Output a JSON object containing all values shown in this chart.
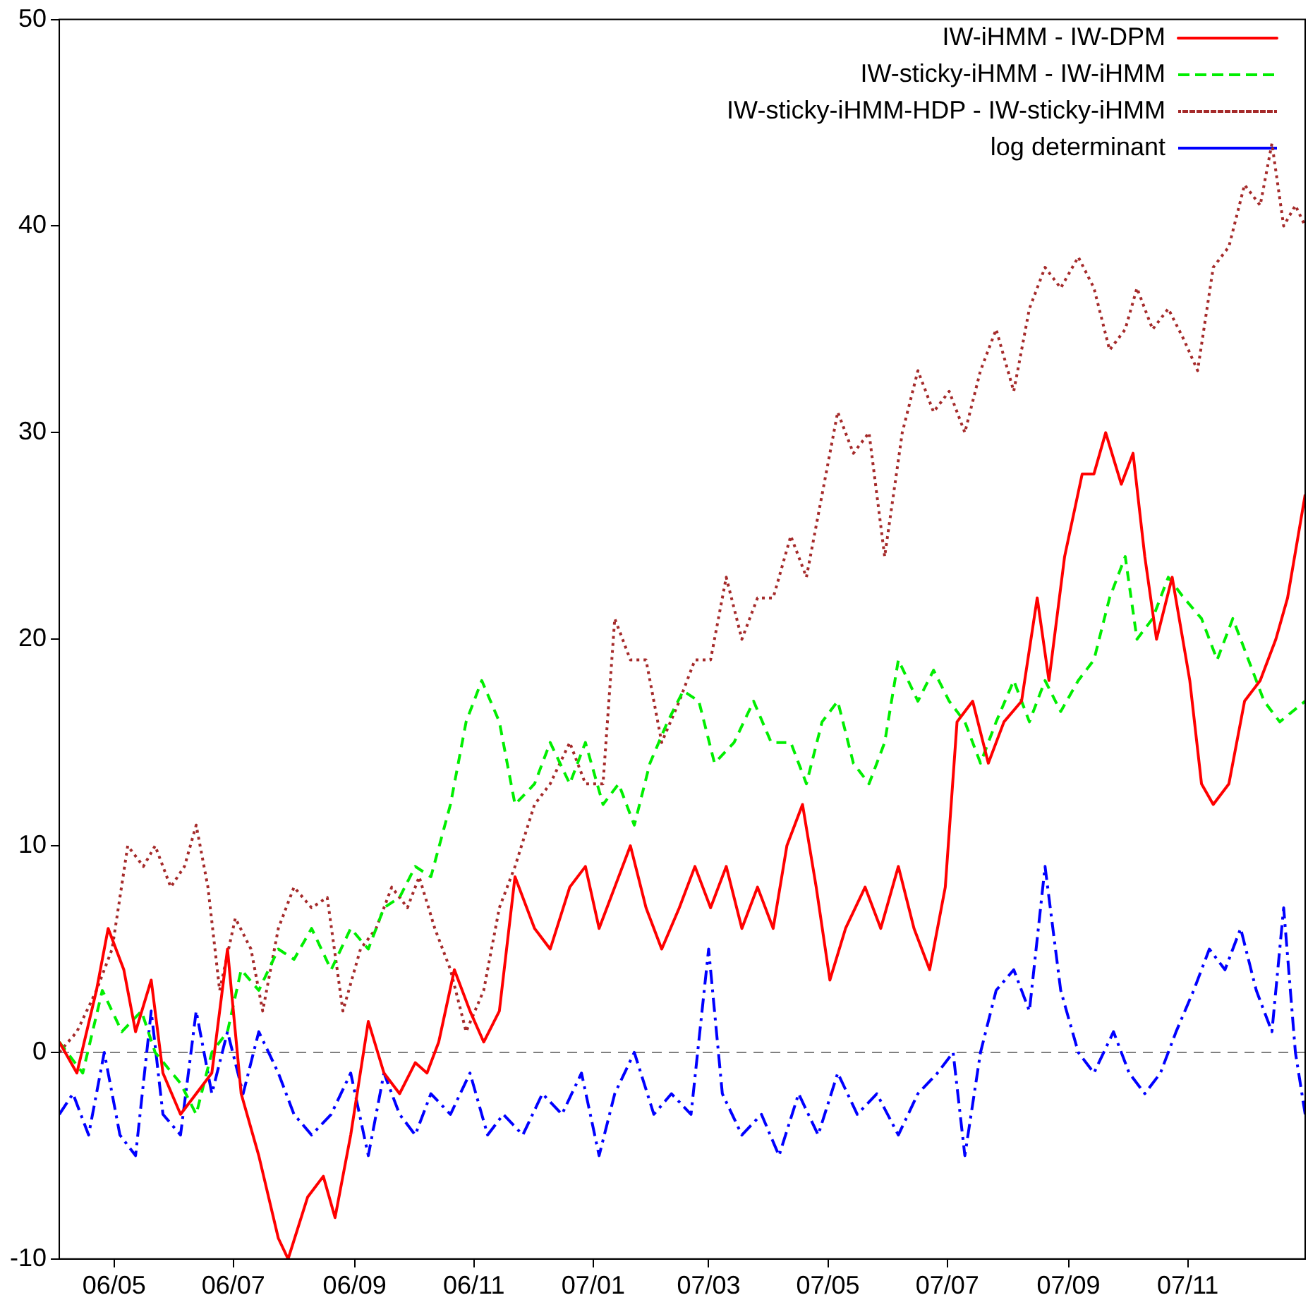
{
  "chart_data": {
    "type": "line",
    "xlim": [
      "2006-04-03",
      "2007-12-31"
    ],
    "ylim": [
      -10,
      50
    ],
    "xticks": [
      {
        "value": "2006-05-01",
        "label": "06/05"
      },
      {
        "value": "2006-07-01",
        "label": "06/07"
      },
      {
        "value": "2006-09-01",
        "label": "06/09"
      },
      {
        "value": "2006-11-01",
        "label": "06/11"
      },
      {
        "value": "2007-01-01",
        "label": "07/01"
      },
      {
        "value": "2007-03-01",
        "label": "07/03"
      },
      {
        "value": "2007-05-01",
        "label": "07/05"
      },
      {
        "value": "2007-07-01",
        "label": "07/07"
      },
      {
        "value": "2007-09-01",
        "label": "07/09"
      },
      {
        "value": "2007-11-01",
        "label": "07/11"
      }
    ],
    "yticks": [
      -10,
      0,
      10,
      20,
      30,
      40,
      50
    ],
    "grid": false,
    "legend": "top right",
    "marker": "none",
    "ref_lines": [
      {
        "axis": "y",
        "value": 0,
        "color": "#808080",
        "line_style": "dashed"
      }
    ],
    "series": [
      {
        "name": "IW-iHMM - IW-DPM",
        "color": "#ff0000",
        "line_style": "solid",
        "x": [
          "2006-04-03",
          "2006-04-12",
          "2006-04-22",
          "2006-04-28",
          "2006-05-06",
          "2006-05-12",
          "2006-05-20",
          "2006-05-26",
          "2006-06-04",
          "2006-06-12",
          "2006-06-20",
          "2006-06-28",
          "2006-07-05",
          "2006-07-14",
          "2006-07-24",
          "2006-07-29",
          "2006-08-08",
          "2006-08-16",
          "2006-08-22",
          "2006-08-30",
          "2006-09-08",
          "2006-09-16",
          "2006-09-24",
          "2006-10-02",
          "2006-10-08",
          "2006-10-14",
          "2006-10-22",
          "2006-10-30",
          "2006-11-06",
          "2006-11-14",
          "2006-11-22",
          "2006-12-02",
          "2006-12-10",
          "2006-12-20",
          "2006-12-28",
          "2007-01-04",
          "2007-01-12",
          "2007-01-20",
          "2007-01-28",
          "2007-02-05",
          "2007-02-14",
          "2007-02-22",
          "2007-03-02",
          "2007-03-10",
          "2007-03-18",
          "2007-03-26",
          "2007-04-03",
          "2007-04-10",
          "2007-04-18",
          "2007-04-25",
          "2007-05-02",
          "2007-05-10",
          "2007-05-20",
          "2007-05-28",
          "2007-06-06",
          "2007-06-14",
          "2007-06-22",
          "2007-06-30",
          "2007-07-06",
          "2007-07-14",
          "2007-07-22",
          "2007-07-30",
          "2007-08-08",
          "2007-08-16",
          "2007-08-22",
          "2007-08-30",
          "2007-09-08",
          "2007-09-14",
          "2007-09-20",
          "2007-09-28",
          "2007-10-04",
          "2007-10-10",
          "2007-10-16",
          "2007-10-24",
          "2007-11-02",
          "2007-11-08",
          "2007-11-14",
          "2007-11-22",
          "2007-11-30",
          "2007-12-08",
          "2007-12-16",
          "2007-12-22",
          "2007-12-31"
        ],
        "values": [
          0.5,
          -1,
          3,
          6,
          4,
          1,
          3.5,
          -1,
          -3,
          -2,
          -1,
          5,
          -2,
          -5,
          -9,
          -10,
          -7,
          -6,
          -8,
          -4,
          1.5,
          -1,
          -2,
          -0.5,
          -1,
          0.5,
          4,
          2,
          0.5,
          2,
          8.5,
          6,
          5,
          8,
          9,
          6,
          8,
          10,
          7,
          5,
          7,
          9,
          7,
          9,
          6,
          8,
          6,
          10,
          12,
          8,
          3.5,
          6,
          8,
          6,
          9,
          6,
          4,
          8,
          16,
          17,
          14,
          16,
          17,
          22,
          18,
          24,
          28,
          28,
          30,
          27.5,
          29,
          24,
          20,
          23,
          18,
          13,
          12,
          13,
          17,
          18,
          20,
          22,
          27
        ]
      },
      {
        "name": "IW-sticky-iHMM - IW-iHMM",
        "color": "#00ee00",
        "line_style": "dashed",
        "x": [
          "2006-04-03",
          "2006-04-15",
          "2006-04-25",
          "2006-05-05",
          "2006-05-15",
          "2006-05-22",
          "2006-06-04",
          "2006-06-12",
          "2006-06-20",
          "2006-06-28",
          "2006-07-05",
          "2006-07-14",
          "2006-07-24",
          "2006-08-01",
          "2006-08-10",
          "2006-08-20",
          "2006-08-30",
          "2006-09-08",
          "2006-09-16",
          "2006-09-24",
          "2006-10-02",
          "2006-10-10",
          "2006-10-20",
          "2006-10-28",
          "2006-11-05",
          "2006-11-14",
          "2006-11-22",
          "2006-12-02",
          "2006-12-10",
          "2006-12-20",
          "2006-12-28",
          "2007-01-06",
          "2007-01-14",
          "2007-01-22",
          "2007-01-30",
          "2007-02-08",
          "2007-02-16",
          "2007-02-24",
          "2007-03-04",
          "2007-03-14",
          "2007-03-24",
          "2007-04-02",
          "2007-04-12",
          "2007-04-20",
          "2007-04-28",
          "2007-05-06",
          "2007-05-14",
          "2007-05-22",
          "2007-05-30",
          "2007-06-06",
          "2007-06-16",
          "2007-06-24",
          "2007-07-02",
          "2007-07-10",
          "2007-07-18",
          "2007-07-26",
          "2007-08-04",
          "2007-08-12",
          "2007-08-20",
          "2007-08-28",
          "2007-09-06",
          "2007-09-14",
          "2007-09-22",
          "2007-09-30",
          "2007-10-06",
          "2007-10-14",
          "2007-10-22",
          "2007-10-30",
          "2007-11-08",
          "2007-11-16",
          "2007-11-24",
          "2007-12-02",
          "2007-12-10",
          "2007-12-18",
          "2007-12-31"
        ],
        "values": [
          0.5,
          -1,
          3,
          1,
          2,
          0,
          -1.5,
          -3,
          0,
          1,
          4,
          3,
          5,
          4.5,
          6,
          4,
          6,
          5,
          7,
          7.5,
          9,
          8.5,
          12,
          16,
          18,
          16,
          12,
          13,
          15,
          13,
          15,
          12,
          13,
          11,
          14,
          16,
          17.5,
          17,
          14,
          15,
          17,
          15,
          15,
          13,
          16,
          17,
          14,
          13,
          15,
          19,
          17,
          18.5,
          17,
          16,
          14,
          16,
          18,
          16,
          18,
          16.5,
          18,
          19,
          22,
          24,
          20,
          21,
          23,
          22,
          21,
          19,
          21,
          19,
          17,
          16,
          17
        ]
      },
      {
        "name": "IW-sticky-iHMM-HDP - IW-sticky-iHMM",
        "color": "#a52a2a",
        "line_style": "dotted",
        "x": [
          "2006-04-03",
          "2006-04-12",
          "2006-04-22",
          "2006-04-30",
          "2006-05-08",
          "2006-05-16",
          "2006-05-22",
          "2006-05-30",
          "2006-06-06",
          "2006-06-12",
          "2006-06-18",
          "2006-06-24",
          "2006-07-02",
          "2006-07-10",
          "2006-07-16",
          "2006-07-24",
          "2006-08-01",
          "2006-08-10",
          "2006-08-18",
          "2006-08-26",
          "2006-09-04",
          "2006-09-12",
          "2006-09-20",
          "2006-09-28",
          "2006-10-04",
          "2006-10-12",
          "2006-10-20",
          "2006-10-28",
          "2006-11-06",
          "2006-11-14",
          "2006-11-22",
          "2006-12-02",
          "2006-12-10",
          "2006-12-20",
          "2006-12-28",
          "2007-01-06",
          "2007-01-12",
          "2007-01-20",
          "2007-01-28",
          "2007-02-05",
          "2007-02-14",
          "2007-02-22",
          "2007-03-02",
          "2007-03-10",
          "2007-03-18",
          "2007-03-26",
          "2007-04-03",
          "2007-04-12",
          "2007-04-20",
          "2007-04-28",
          "2007-05-06",
          "2007-05-14",
          "2007-05-22",
          "2007-05-30",
          "2007-06-08",
          "2007-06-16",
          "2007-06-24",
          "2007-07-02",
          "2007-07-10",
          "2007-07-18",
          "2007-07-26",
          "2007-08-04",
          "2007-08-12",
          "2007-08-20",
          "2007-08-28",
          "2007-09-06",
          "2007-09-14",
          "2007-09-22",
          "2007-09-30",
          "2007-10-06",
          "2007-10-14",
          "2007-10-22",
          "2007-10-30",
          "2007-11-06",
          "2007-11-14",
          "2007-11-22",
          "2007-11-30",
          "2007-12-08",
          "2007-12-14",
          "2007-12-20",
          "2007-12-26",
          "2007-12-31"
        ],
        "values": [
          0,
          1,
          3,
          5,
          10,
          9,
          10,
          8,
          9,
          11,
          8,
          3,
          6.5,
          5,
          2,
          6,
          8,
          7,
          7.5,
          2,
          5,
          6,
          8,
          7,
          8.5,
          6,
          4,
          1,
          3,
          7,
          9,
          12,
          13,
          15,
          13,
          13,
          21,
          19,
          19,
          15,
          17,
          19,
          19,
          23,
          20,
          22,
          22,
          25,
          23,
          27,
          31,
          29,
          30,
          24,
          30,
          33,
          31,
          32,
          30,
          33,
          35,
          32,
          36,
          38,
          37,
          38.5,
          37,
          34,
          35,
          37,
          35,
          36,
          34.5,
          33,
          38,
          39,
          42,
          41,
          44,
          40,
          41,
          40
        ]
      },
      {
        "name": "log determinant",
        "color": "#0000ff",
        "line_style": "dashdot",
        "x": [
          "2006-04-03",
          "2006-04-10",
          "2006-04-18",
          "2006-04-26",
          "2006-05-04",
          "2006-05-12",
          "2006-05-20",
          "2006-05-26",
          "2006-06-04",
          "2006-06-12",
          "2006-06-20",
          "2006-06-28",
          "2006-07-06",
          "2006-07-14",
          "2006-07-24",
          "2006-08-01",
          "2006-08-10",
          "2006-08-20",
          "2006-08-30",
          "2006-09-08",
          "2006-09-16",
          "2006-09-24",
          "2006-10-02",
          "2006-10-10",
          "2006-10-20",
          "2006-10-30",
          "2006-11-08",
          "2006-11-16",
          "2006-11-26",
          "2006-12-06",
          "2006-12-16",
          "2006-12-26",
          "2007-01-04",
          "2007-01-12",
          "2007-01-22",
          "2007-02-01",
          "2007-02-10",
          "2007-02-20",
          "2007-03-01",
          "2007-03-08",
          "2007-03-18",
          "2007-03-28",
          "2007-04-06",
          "2007-04-16",
          "2007-04-26",
          "2007-05-06",
          "2007-05-16",
          "2007-05-26",
          "2007-06-06",
          "2007-06-16",
          "2007-06-26",
          "2007-07-04",
          "2007-07-10",
          "2007-07-18",
          "2007-07-26",
          "2007-08-04",
          "2007-08-12",
          "2007-08-20",
          "2007-08-28",
          "2007-09-06",
          "2007-09-14",
          "2007-09-24",
          "2007-10-02",
          "2007-10-10",
          "2007-10-18",
          "2007-10-26",
          "2007-11-04",
          "2007-11-12",
          "2007-11-20",
          "2007-11-28",
          "2007-12-06",
          "2007-12-14",
          "2007-12-20",
          "2007-12-26",
          "2007-12-31"
        ],
        "values": [
          -3,
          -2,
          -4,
          0,
          -4,
          -5,
          2,
          -3,
          -4,
          2,
          -2,
          1,
          -2,
          1,
          -1,
          -3,
          -4,
          -3,
          -1,
          -5,
          -1,
          -3,
          -4,
          -2,
          -3,
          -1,
          -4,
          -3,
          -4,
          -2,
          -3,
          -1,
          -5,
          -2,
          0,
          -3,
          -2,
          -3,
          5,
          -2,
          -4,
          -3,
          -5,
          -2,
          -4,
          -1,
          -3,
          -2,
          -4,
          -2,
          -1,
          0,
          -5,
          0,
          3,
          4,
          2,
          9,
          3,
          0,
          -1,
          1,
          -1,
          -2,
          -1,
          1,
          3,
          5,
          4,
          6,
          3,
          1,
          7,
          0,
          -3
        ]
      }
    ]
  }
}
